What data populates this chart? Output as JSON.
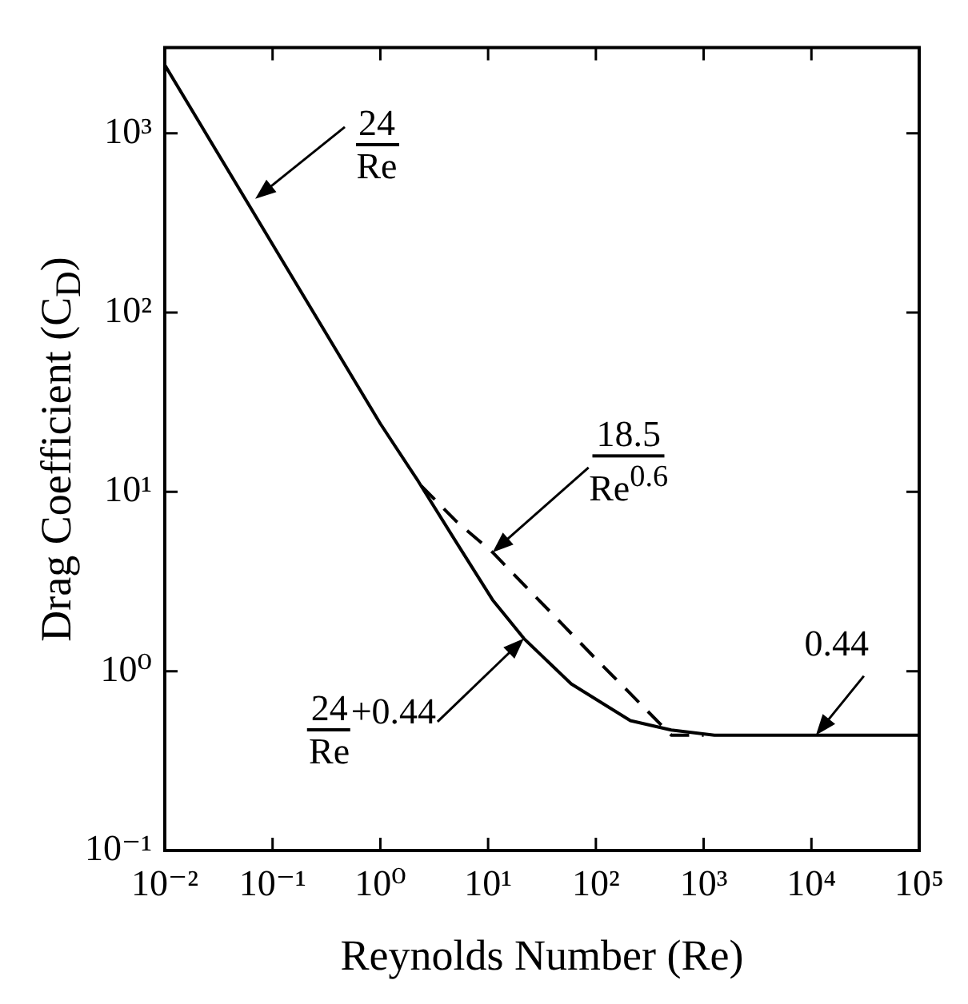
{
  "chart_data": {
    "type": "line",
    "xlabel": "Reynolds Number (Re)",
    "ylabel": "Drag Coefficient (C$_{D}$)",
    "log": "xy",
    "legend": false,
    "marker": "none",
    "xlim": [
      0.01,
      100000
    ],
    "ylim": [
      0.1,
      3000
    ],
    "xticks": [
      {
        "value": 0.01,
        "label": "10⁻²"
      },
      {
        "value": 0.1,
        "label": "10⁻¹"
      },
      {
        "value": 1,
        "label": "10⁰"
      },
      {
        "value": 10,
        "label": "10¹"
      },
      {
        "value": 100,
        "label": "10²"
      },
      {
        "value": 1000,
        "label": "10³"
      },
      {
        "value": 10000,
        "label": "10⁴"
      },
      {
        "value": 100000,
        "label": "10⁵"
      }
    ],
    "yticks": [
      {
        "value": 0.1,
        "label": "10⁻¹"
      },
      {
        "value": 1,
        "label": "10⁰"
      },
      {
        "value": 10,
        "label": "10¹"
      },
      {
        "value": 100,
        "label": "10²"
      },
      {
        "value": 1000,
        "label": "10³"
      }
    ],
    "series": [
      {
        "color": "#000000",
        "line_style": "solid",
        "x": [
          0.01,
          0.1,
          1,
          2.24,
          5,
          11,
          21.5,
          59,
          209,
          500,
          1260,
          100000
        ],
        "values": [
          2400,
          240,
          24,
          11.5,
          5.3,
          2.5,
          1.52,
          0.85,
          0.53,
          0.47,
          0.44,
          0.44
        ]
      },
      {
        "color": "#000000",
        "line_style": "dashed",
        "x": [
          2.4,
          5,
          11,
          50,
          100,
          200,
          500,
          1000
        ],
        "values": [
          10.8,
          6.9,
          4.6,
          1.8,
          1.17,
          0.77,
          0.44,
          0.44
        ]
      }
    ],
    "annotations": [
      {
        "text": "24\nRe",
        "x": 0.069,
        "y": 430
      },
      {
        "text": "18.5\nRe$^{0.6}$",
        "x": 11,
        "y": 4.6
      },
      {
        "text": "24\nRe+0.44",
        "x": 21.5,
        "y": 1.52
      },
      {
        "text": "0.44",
        "x": 11000,
        "y": 0.44
      }
    ]
  }
}
